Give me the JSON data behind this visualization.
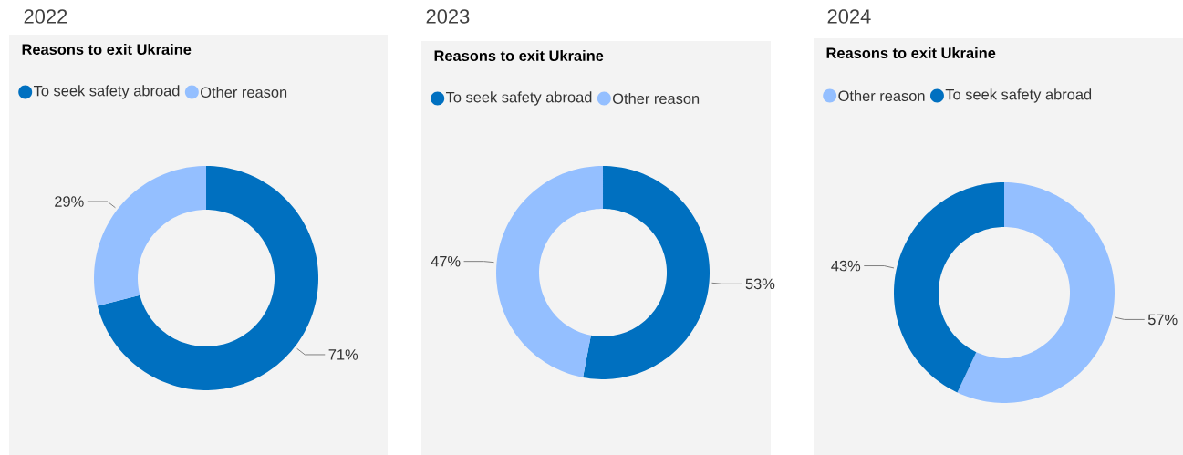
{
  "chart_data": [
    {
      "type": "donut",
      "title": "2022",
      "subtitle": "Reasons to exit Ukraine",
      "categories": [
        "To seek safety abroad",
        "Other reason"
      ],
      "values": [
        71,
        29
      ],
      "colors": [
        "#0070c0",
        "#94bfff"
      ],
      "value_labels": [
        "71%",
        "29%"
      ],
      "legend": "top left"
    },
    {
      "type": "donut",
      "title": "2023",
      "subtitle": "Reasons to exit Ukraine",
      "categories": [
        "To seek safety abroad",
        "Other reason"
      ],
      "values": [
        53,
        47
      ],
      "colors": [
        "#0070c0",
        "#94bfff"
      ],
      "value_labels": [
        "53%",
        "47%"
      ],
      "legend": "top left"
    },
    {
      "type": "donut",
      "title": "2024",
      "subtitle": "Reasons to exit Ukraine",
      "categories": [
        "Other reason",
        "To seek safety abroad"
      ],
      "values": [
        57,
        43
      ],
      "colors": [
        "#94bfff",
        "#0070c0"
      ],
      "value_labels": [
        "57%",
        "43%"
      ],
      "legend": "top left"
    }
  ]
}
